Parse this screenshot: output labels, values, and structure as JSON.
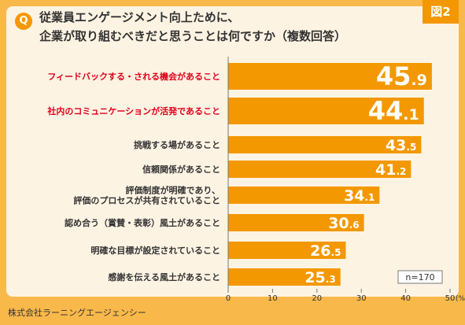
{
  "question_badge": "Q",
  "figure_label": "図2",
  "title_lines": [
    "従業員エンゲージメント向上ために、",
    "企業が取り組むべきだと思うことは何ですか（複数回答）"
  ],
  "source": "株式会社ラーニングエージェンシー",
  "sample_size": "n=170",
  "colors": {
    "bar": "#f39800",
    "highlight_label": "#e0001a",
    "frame": "#f9b84a",
    "panel": "#fdf3e3"
  },
  "chart_data": {
    "type": "bar",
    "orientation": "horizontal",
    "categories": [
      "フィードバックする・される機会があること",
      "社内のコミュニケーションが活発であること",
      "挑戦する場があること",
      "信頼関係があること",
      "評価制度が明確であり、\n評価のプロセスが共有されていること",
      "認め合う（賞賛・表彰）風土があること",
      "明確な目標が設定されていること",
      "感謝を伝える風土があること"
    ],
    "values": [
      45.9,
      44.1,
      43.5,
      41.2,
      34.1,
      30.6,
      26.5,
      25.3
    ],
    "value_labels": [
      [
        "45",
        ".9"
      ],
      [
        "44",
        ".1"
      ],
      [
        "43",
        ".5"
      ],
      [
        "41",
        ".2"
      ],
      [
        "34",
        ".1"
      ],
      [
        "30",
        ".6"
      ],
      [
        "26",
        ".5"
      ],
      [
        "25",
        ".3"
      ]
    ],
    "highlighted": [
      true,
      true,
      false,
      false,
      false,
      false,
      false,
      false
    ],
    "xlim": [
      0,
      50
    ],
    "xticks": [
      "0",
      "10",
      "20",
      "30",
      "40",
      "50"
    ],
    "xunit": "(%)",
    "grid": false
  }
}
